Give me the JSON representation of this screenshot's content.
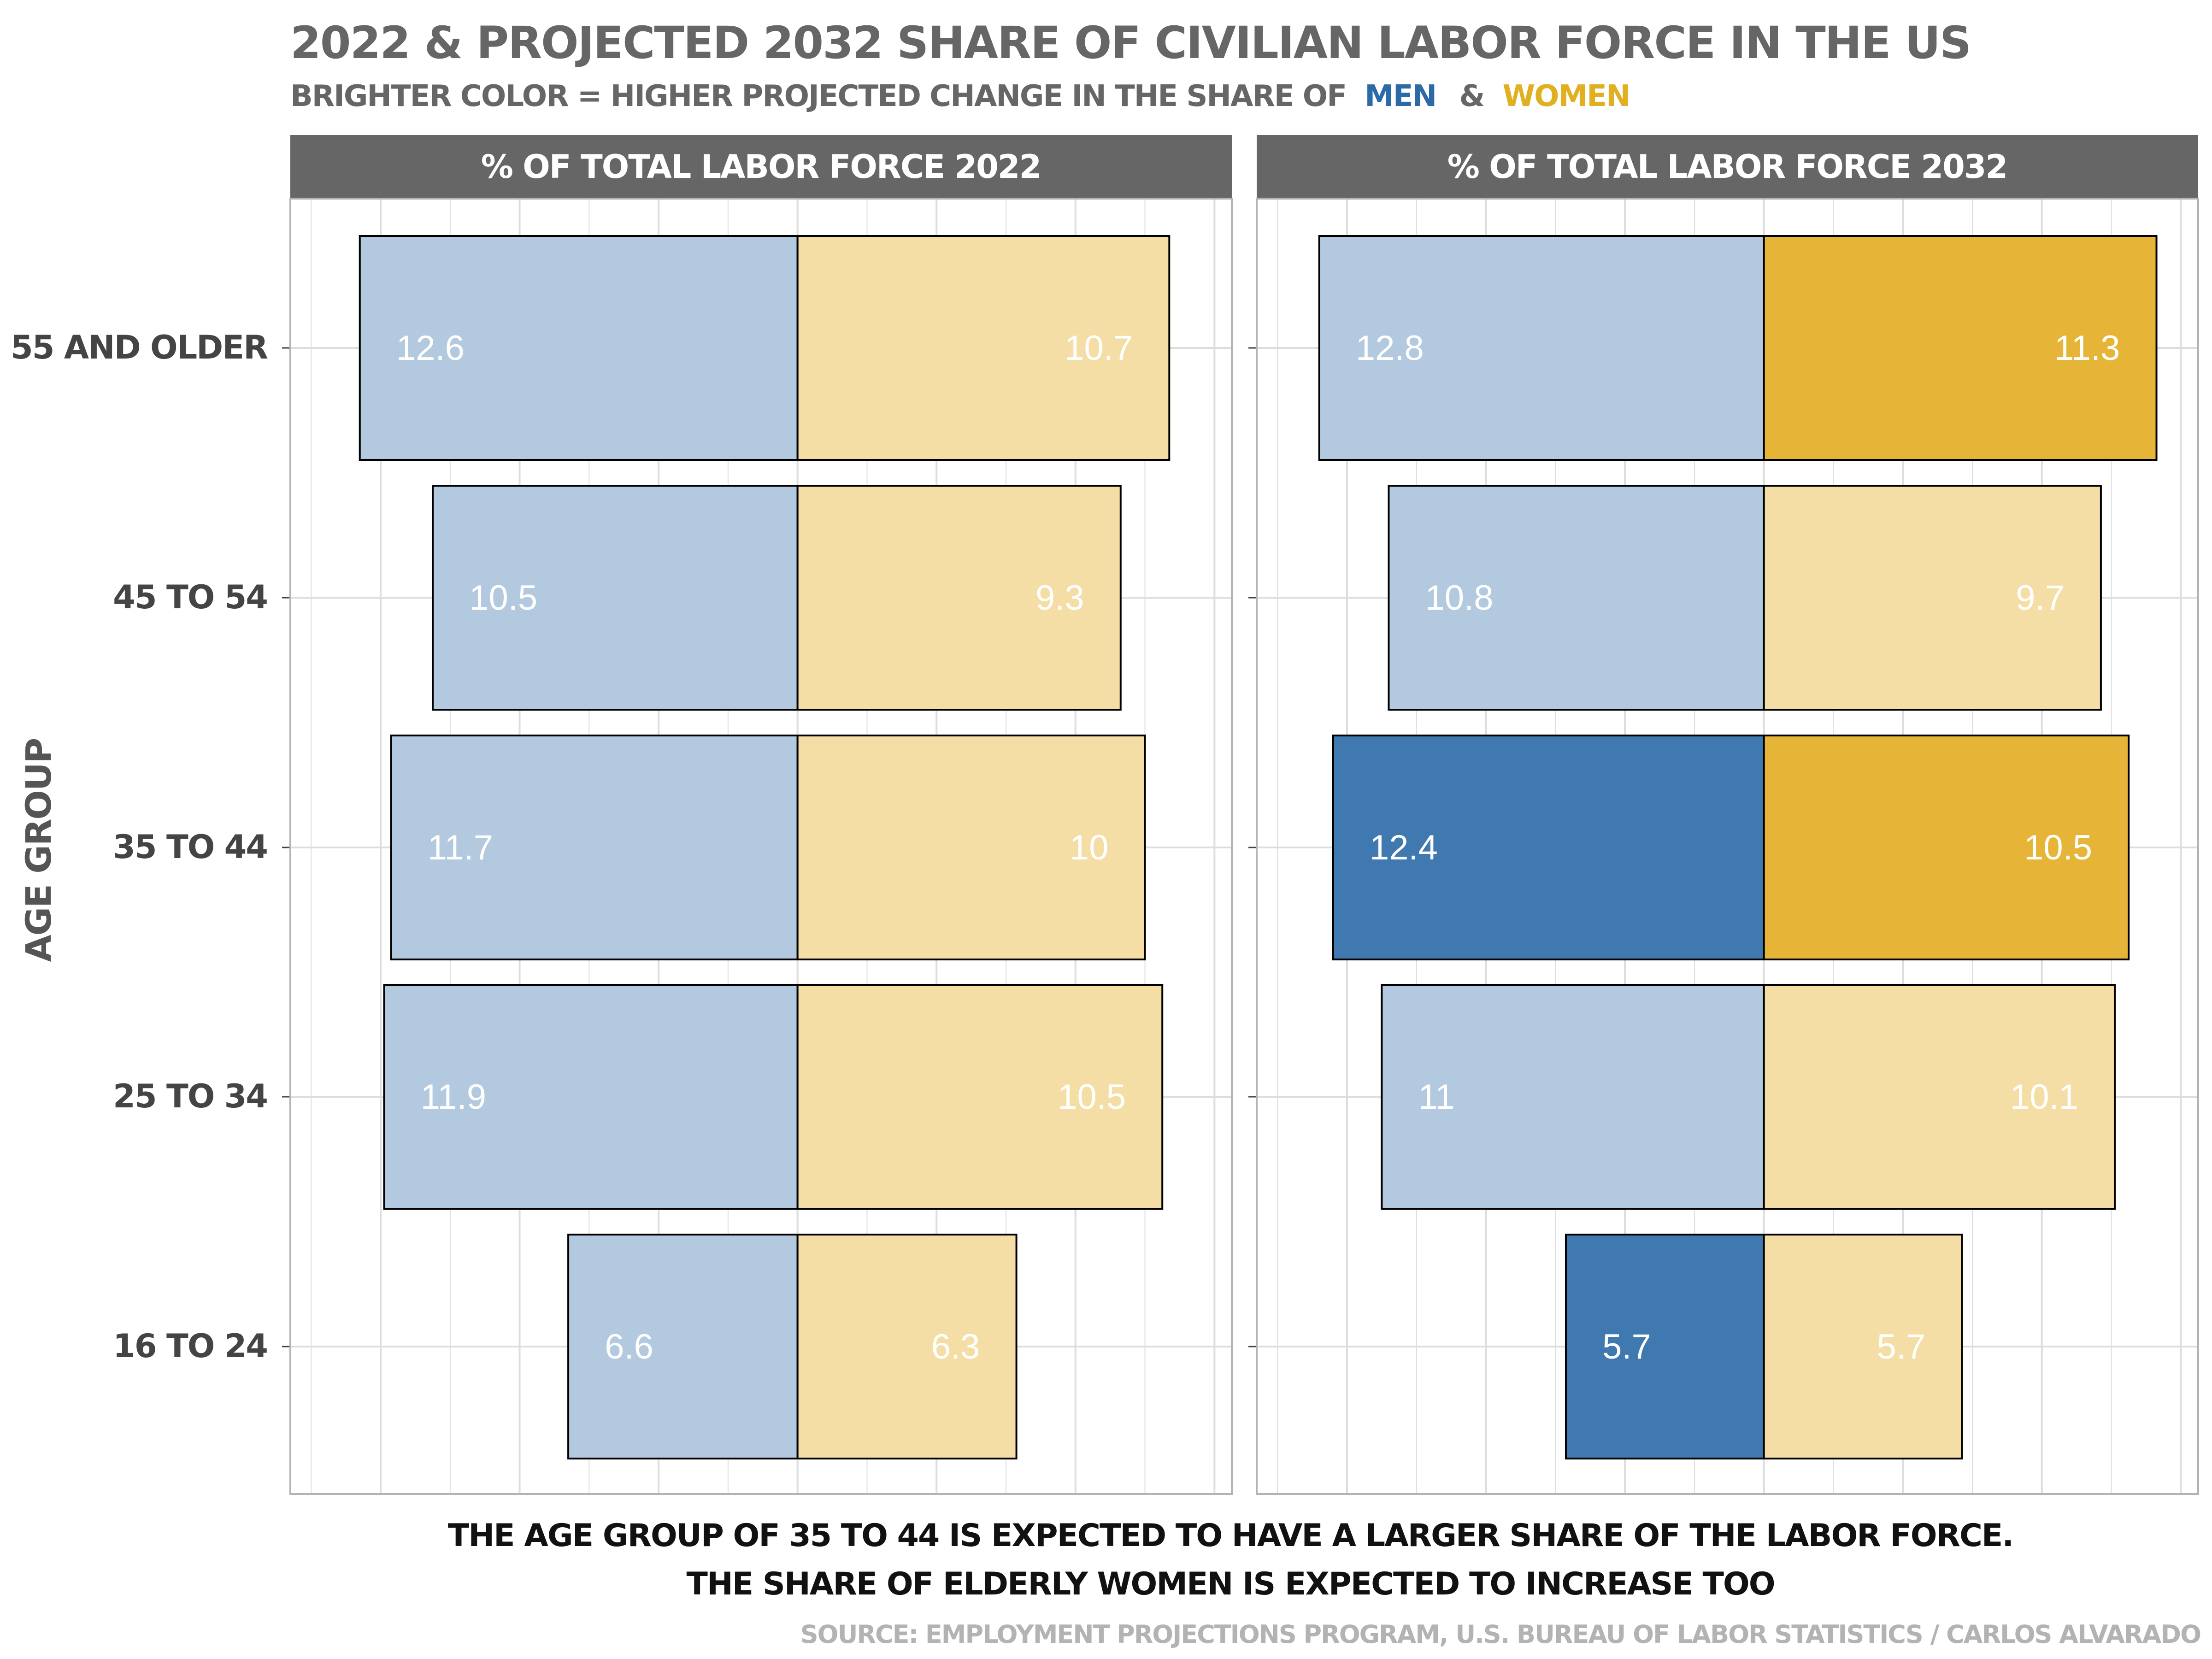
{
  "chart_data": {
    "type": "bar",
    "title": "2022 & PROJECTED 2032 SHARE OF CIVILIAN LABOR FORCE IN THE US",
    "subtitle": {
      "prefix": "BRIGHTER COLOR = HIGHER PROJECTED CHANGE IN THE SHARE OF",
      "men": "MEN",
      "amp": "&",
      "women": "WOMEN"
    },
    "ylabel": "AGE GROUP",
    "xlabel_lines": [
      "THE AGE GROUP OF 35 TO 44 IS EXPECTED TO HAVE A LARGER SHARE OF THE LABOR FORCE.",
      "THE SHARE OF ELDERLY WOMEN IS EXPECTED TO INCREASE TOO"
    ],
    "caption": "SOURCE: EMPLOYMENT PROJECTIONS PROGRAM, U.S. BUREAU OF LABOR STATISTICS / CARLOS ALVARADO",
    "categories": [
      "55 AND OLDER",
      "45 TO 54",
      "35 TO 44",
      "25 TO 34",
      "16 TO 24"
    ],
    "colors": {
      "men_dim": "#b3c9df",
      "men_bright": "#4079b0",
      "women_dim": "#f4dea6",
      "women_bright": "#e6b537",
      "strip": "#666666",
      "title": "#666666",
      "men_text": "#2b6aa6",
      "women_text": "#e0b020",
      "caption": "#b3b3b3",
      "grid": "#dddddd",
      "panel_border": "#b3b3b3"
    },
    "xlim": [
      -14.6,
      12.5
    ],
    "panels": [
      {
        "strip": "% OF TOTAL LABOR FORCE 2022",
        "men": [
          12.6,
          10.5,
          11.7,
          11.9,
          6.6
        ],
        "women": [
          10.7,
          9.3,
          10,
          10.5,
          6.3
        ],
        "men_bright": [
          false,
          false,
          false,
          false,
          false
        ],
        "women_bright": [
          false,
          false,
          false,
          false,
          false
        ],
        "men_labels": [
          "12.6",
          "10.5",
          "11.7",
          "11.9",
          "6.6"
        ],
        "women_labels": [
          "10.7",
          "9.3",
          "10",
          "10.5",
          "6.3"
        ]
      },
      {
        "strip": "% OF TOTAL LABOR FORCE 2032",
        "men": [
          12.8,
          10.8,
          12.4,
          11,
          5.7
        ],
        "women": [
          11.3,
          9.7,
          10.5,
          10.1,
          5.7
        ],
        "men_bright": [
          false,
          false,
          true,
          false,
          true
        ],
        "women_bright": [
          true,
          false,
          true,
          false,
          false
        ],
        "men_labels": [
          "12.8",
          "10.8",
          "12.4",
          "11",
          "5.7"
        ],
        "women_labels": [
          "11.3",
          "9.7",
          "10.5",
          "10.1",
          "5.7"
        ]
      }
    ],
    "grid": true,
    "legend": "none"
  }
}
